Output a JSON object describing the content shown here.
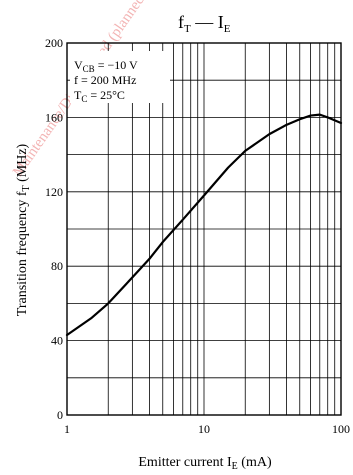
{
  "watermark": "Maintenance/Discontinued (planned maintenance type, maintenance type, discontinued type)",
  "chart_data": {
    "type": "line",
    "title": {
      "main": "f",
      "main_sub": "T",
      "dash": " — ",
      "rhs": "I",
      "rhs_sub": "E"
    },
    "ylabel": {
      "text": "Transition frequency  f",
      "sub": "T",
      "unit": "  (MHz)"
    },
    "xlabel": {
      "text": "Emitter current  I",
      "sub": "E",
      "unit": "  (mA)"
    },
    "xscale": "log",
    "xlim": [
      1,
      100
    ],
    "ylim": [
      0,
      200
    ],
    "x_ticks": [
      "1",
      "10",
      "100"
    ],
    "y_ticks": [
      "0",
      "40",
      "80",
      "120",
      "160",
      "200"
    ],
    "y_gridlines": [
      0,
      20,
      40,
      60,
      80,
      100,
      120,
      140,
      160,
      180,
      200
    ],
    "grid": true,
    "conditions": [
      {
        "pre": "V",
        "sub": "CB",
        "post": " = −10 V"
      },
      {
        "pre": "f = 200 MHz",
        "sub": "",
        "post": ""
      },
      {
        "pre": "T",
        "sub": "C",
        "post": " = 25°C"
      }
    ],
    "series": [
      {
        "x": [
          1,
          1.5,
          2,
          3,
          4,
          5,
          7,
          10,
          15,
          20,
          30,
          40,
          50,
          60,
          70,
          80,
          100
        ],
        "y": [
          43,
          52,
          60,
          74,
          84,
          93,
          105,
          118,
          133,
          142,
          151,
          156,
          159,
          161,
          161.5,
          160,
          157
        ]
      }
    ]
  }
}
